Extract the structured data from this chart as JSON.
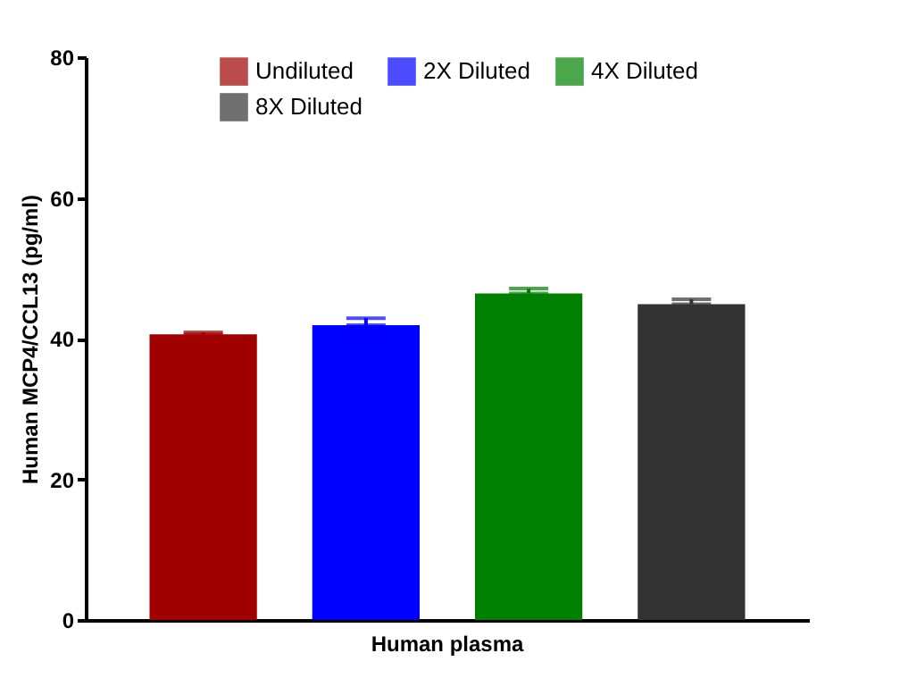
{
  "chart_data": {
    "type": "bar",
    "ylabel": "Human MCP4/CCL13 (pg/ml)",
    "categories": [
      "Human plasma"
    ],
    "series": [
      {
        "name": "Undiluted",
        "color": "#a00000",
        "values": [
          40.6
        ],
        "errors": [
          [
            40.6,
            40.9
          ]
        ]
      },
      {
        "name": "2X Diluted",
        "color": "#0000ff",
        "values": [
          41.9
        ],
        "errors": [
          [
            41.9,
            42.9
          ]
        ]
      },
      {
        "name": "4X Diluted",
        "color": "#008000",
        "values": [
          46.4
        ],
        "errors": [
          [
            46.4,
            47.1
          ]
        ]
      },
      {
        "name": "8X Diluted",
        "color": "#333333",
        "values": [
          44.9
        ],
        "errors": [
          [
            44.9,
            45.6
          ]
        ]
      }
    ],
    "ylim": [
      0,
      80
    ],
    "yticks": [
      0,
      20,
      40,
      60,
      80
    ],
    "grid": false,
    "legend": "top"
  }
}
